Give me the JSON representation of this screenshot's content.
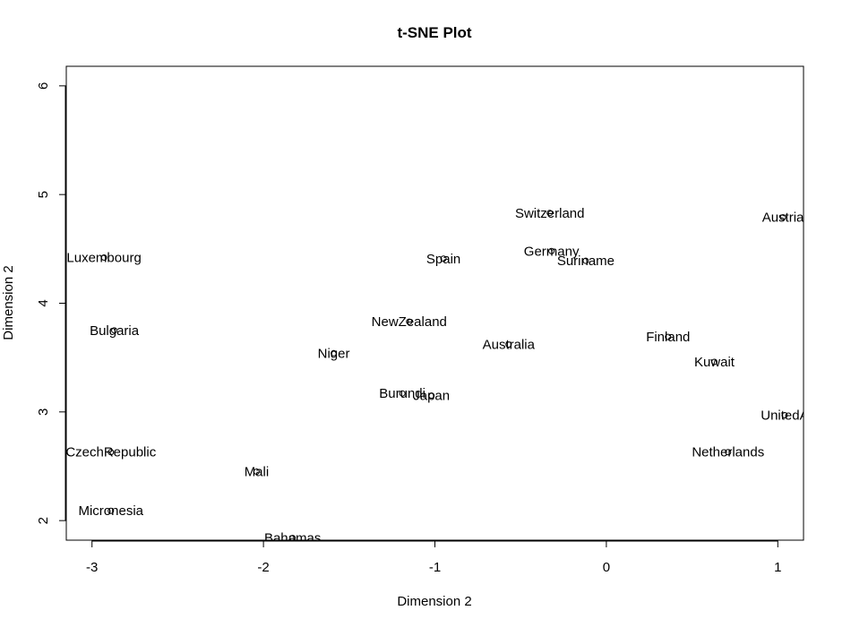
{
  "chart_data": {
    "type": "scatter",
    "title": "t-SNE Plot",
    "xlabel": "Dimension 2",
    "ylabel": "Dimension 2",
    "xlim": [
      -3.15,
      1.15
    ],
    "ylim": [
      1.82,
      6.18
    ],
    "xticks": [
      -3,
      -2,
      -1,
      0,
      1
    ],
    "yticks": [
      2,
      3,
      4,
      5,
      6
    ],
    "grid": false,
    "legend": "none",
    "point_marker": "open-circle",
    "points": [
      {
        "label": "Switzerland",
        "x": -0.33,
        "y": 4.83
      },
      {
        "label": "Austria",
        "x": 1.03,
        "y": 4.79
      },
      {
        "label": "Luxembourg",
        "x": -2.93,
        "y": 4.42
      },
      {
        "label": "Germany",
        "x": -0.32,
        "y": 4.48
      },
      {
        "label": "Spain",
        "x": -0.95,
        "y": 4.41
      },
      {
        "label": "Suriname",
        "x": -0.12,
        "y": 4.39
      },
      {
        "label": "NewZealand",
        "x": -1.15,
        "y": 3.83
      },
      {
        "label": "Bulgaria",
        "x": -2.87,
        "y": 3.75
      },
      {
        "label": "Finland",
        "x": 0.36,
        "y": 3.69
      },
      {
        "label": "Australia",
        "x": -0.57,
        "y": 3.62
      },
      {
        "label": "Niger",
        "x": -1.59,
        "y": 3.54
      },
      {
        "label": "Kuwait",
        "x": 0.63,
        "y": 3.46
      },
      {
        "label": "Burundi",
        "x": -1.19,
        "y": 3.17
      },
      {
        "label": "Japan",
        "x": -1.02,
        "y": 3.15
      },
      {
        "label": "UnitedA",
        "x": 1.04,
        "y": 2.97
      },
      {
        "label": "CzechRepublic",
        "x": -2.89,
        "y": 2.63
      },
      {
        "label": "Netherlands",
        "x": 0.71,
        "y": 2.63
      },
      {
        "label": "Mali",
        "x": -2.04,
        "y": 2.45
      },
      {
        "label": "Micronesia",
        "x": -2.89,
        "y": 2.09
      },
      {
        "label": "Bahamas",
        "x": -1.83,
        "y": 1.84
      }
    ]
  }
}
